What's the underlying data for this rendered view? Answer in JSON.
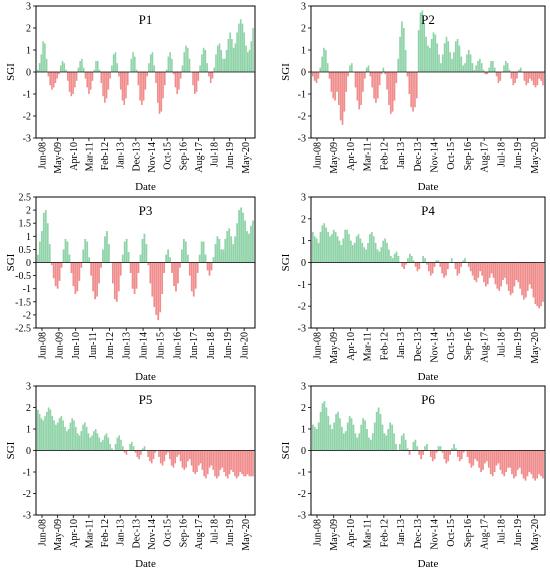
{
  "colors": {
    "positive": "#8fd3a8",
    "negative": "#f08c8c",
    "axis": "#000000",
    "frame": "#000000"
  },
  "chart_data": [
    {
      "type": "bar",
      "title": "P1",
      "xlabel": "Date",
      "ylabel": "SGI",
      "ylim": [
        -3,
        3
      ],
      "yticks": [
        -3,
        -2,
        -1,
        0,
        1,
        2,
        3
      ],
      "xticklabels": [
        "Jun-08",
        "May-09",
        "Apr-10",
        "Mar-11",
        "Feb-12",
        "Jan-13",
        "Dec-13",
        "Nov-14",
        "Oct-15",
        "Sep-16",
        "Aug-17",
        "Jul-18",
        "Jun-19",
        "May-20"
      ],
      "values": [
        0.1,
        0.4,
        0.8,
        1.4,
        1.3,
        0.6,
        -0.2,
        -0.6,
        -0.8,
        -0.7,
        -0.5,
        -0.3,
        -0.1,
        0.3,
        0.5,
        0.4,
        0.1,
        -0.4,
        -0.9,
        -1.1,
        -1.0,
        -0.7,
        -0.4,
        0.2,
        0.5,
        0.6,
        0.2,
        -0.3,
        -0.7,
        -1.0,
        -0.8,
        -0.4,
        0.1,
        0.5,
        0.5,
        0.1,
        -0.5,
        -1.1,
        -1.4,
        -1.2,
        -0.8,
        -0.3,
        0.3,
        0.8,
        0.9,
        0.4,
        -0.2,
        -0.8,
        -1.3,
        -1.5,
        -1.2,
        -0.6,
        0.0,
        0.6,
        0.9,
        0.7,
        0.1,
        -0.6,
        -1.3,
        -1.5,
        -1.3,
        -0.8,
        -0.2,
        0.4,
        0.8,
        0.9,
        0.3,
        -0.5,
        -1.4,
        -1.9,
        -1.8,
        -1.2,
        -0.6,
        0.1,
        0.7,
        0.9,
        0.6,
        -0.1,
        -0.7,
        -1.0,
        -0.8,
        -0.3,
        0.3,
        0.9,
        1.2,
        1.1,
        0.6,
        0.0,
        -0.6,
        -1.0,
        -0.9,
        -0.4,
        0.3,
        0.8,
        1.1,
        1.0,
        0.4,
        -0.2,
        -0.5,
        -0.3,
        0.2,
        0.8,
        1.2,
        1.3,
        1.0,
        0.6,
        0.6,
        1.0,
        1.5,
        1.8,
        1.5,
        1.1,
        1.3,
        1.8,
        2.2,
        2.4,
        2.2,
        1.8,
        1.2,
        0.9,
        1.0,
        1.4,
        2.0
      ]
    },
    {
      "type": "bar",
      "title": "P2",
      "xlabel": "Date",
      "ylabel": "SGI",
      "ylim": [
        -3,
        3
      ],
      "yticks": [
        -3,
        -2,
        -1,
        0,
        1,
        2,
        3
      ],
      "xticklabels": [
        "Jun-08",
        "May-09",
        "Apr-10",
        "Mar-11",
        "Feb-12",
        "Jan-13",
        "Dec-13",
        "Nov-14",
        "Oct-15",
        "Sep-16",
        "Aug-17",
        "Jul-18",
        "Jun-19",
        "May-20"
      ],
      "values": [
        -0.2,
        -0.4,
        -0.5,
        -0.3,
        0.2,
        0.7,
        1.1,
        1.0,
        0.4,
        -0.3,
        -0.9,
        -1.2,
        -1.3,
        -0.9,
        -1.5,
        -2.2,
        -2.4,
        -1.8,
        -0.9,
        -0.2,
        0.3,
        0.4,
        0.0,
        -0.7,
        -1.3,
        -1.7,
        -1.5,
        -0.9,
        -0.3,
        0.2,
        0.3,
        -0.2,
        -0.7,
        -1.2,
        -1.4,
        -1.2,
        -0.6,
        -0.1,
        0.2,
        -0.1,
        -0.8,
        -1.5,
        -1.9,
        -1.8,
        -1.3,
        -0.5,
        0.6,
        1.6,
        2.3,
        2.0,
        1.0,
        -0.2,
        -1.0,
        -1.6,
        -1.8,
        -1.6,
        -1.2,
        1.9,
        2.7,
        2.8,
        2.2,
        1.6,
        1.2,
        1.1,
        1.5,
        1.8,
        1.7,
        1.3,
        0.8,
        0.4,
        0.8,
        1.3,
        1.6,
        1.4,
        0.9,
        0.6,
        0.9,
        1.4,
        1.5,
        1.2,
        0.7,
        0.3,
        0.4,
        0.8,
        1.0,
        0.8,
        0.4,
        0.1,
        0.3,
        0.5,
        0.6,
        0.4,
        0.1,
        -0.1,
        -0.1,
        0.2,
        0.5,
        0.5,
        0.2,
        -0.2,
        -0.5,
        -0.4,
        0.0,
        0.3,
        0.5,
        0.4,
        0.1,
        -0.3,
        -0.6,
        -0.5,
        -0.3,
        0.1,
        0.2,
        0.0,
        -0.4,
        -0.6,
        -0.5,
        -0.3,
        -0.4,
        -0.6,
        -0.7,
        -0.6,
        -0.3,
        -0.4,
        -0.6
      ]
    },
    {
      "type": "bar",
      "title": "P3",
      "xlabel": "Date",
      "ylabel": "SGI",
      "ylim": [
        -2.5,
        2.5
      ],
      "yticks": [
        -2.5,
        -2,
        -1.5,
        -1,
        -0.5,
        0,
        0.5,
        1,
        1.5,
        2,
        2.5
      ],
      "xticklabels": [
        "Jun-08",
        "Jun-09",
        "Jun-10",
        "Jun-11",
        "Jun-12",
        "Jun-13",
        "Jun-14",
        "Jun-15",
        "Jun-16",
        "Jun-17",
        "Jun-18",
        "Jun-19",
        "Jun-20"
      ],
      "values": [
        0.3,
        0.8,
        1.2,
        1.9,
        2.0,
        1.5,
        0.7,
        -0.1,
        -0.6,
        -0.9,
        -1.0,
        -0.7,
        -0.2,
        0.5,
        0.9,
        0.8,
        0.3,
        -0.4,
        -0.9,
        -1.2,
        -1.1,
        -0.7,
        -0.2,
        0.5,
        0.9,
        0.8,
        0.2,
        -0.5,
        -1.1,
        -1.4,
        -1.3,
        -0.8,
        -0.2,
        0.5,
        1.0,
        1.2,
        0.7,
        0.0,
        -0.8,
        -1.4,
        -1.5,
        -1.1,
        -0.5,
        0.3,
        0.8,
        0.9,
        0.4,
        -0.4,
        -1.0,
        -1.2,
        -1.0,
        -0.4,
        0.3,
        0.9,
        1.1,
        0.7,
        -0.1,
        -0.8,
        -1.3,
        -1.7,
        -2.0,
        -2.2,
        -1.9,
        -1.2,
        -0.4,
        0.3,
        0.5,
        0.2,
        -0.4,
        -0.9,
        -1.1,
        -0.8,
        -0.2,
        0.5,
        0.9,
        0.8,
        0.3,
        -0.5,
        -1.1,
        -1.3,
        -1.0,
        -0.4,
        0.3,
        0.8,
        0.8,
        0.3,
        -0.3,
        -0.5,
        -0.3,
        0.2,
        0.7,
        1.0,
        0.9,
        0.5,
        0.5,
        0.9,
        1.2,
        1.3,
        1.0,
        0.7,
        1.0,
        1.5,
        2.0,
        2.1,
        1.9,
        1.6,
        1.2,
        1.1,
        1.4,
        1.6
      ]
    },
    {
      "type": "bar",
      "title": "P4",
      "xlabel": "Date",
      "ylabel": "SGI",
      "ylim": [
        -3,
        3
      ],
      "yticks": [
        -3,
        -2,
        -1,
        0,
        1,
        2,
        3
      ],
      "xticklabels": [
        "Jun-08",
        "May-09",
        "Apr-10",
        "Mar-11",
        "Feb-12",
        "Jan-13",
        "Dec-13",
        "Nov-14",
        "Oct-15",
        "Sep-16",
        "Aug-17",
        "Jul-18",
        "Jun-19",
        "May-20"
      ],
      "values": [
        1.4,
        1.2,
        1.1,
        0.9,
        1.4,
        1.7,
        1.8,
        1.6,
        1.4,
        1.2,
        1.3,
        1.5,
        1.4,
        1.2,
        1.0,
        0.8,
        1.1,
        1.5,
        1.5,
        1.3,
        1.0,
        0.8,
        0.9,
        1.2,
        1.3,
        1.1,
        0.9,
        0.7,
        0.6,
        0.9,
        1.3,
        1.4,
        1.2,
        0.9,
        0.6,
        0.5,
        0.7,
        1.0,
        1.1,
        0.9,
        0.6,
        0.3,
        0.2,
        0.4,
        0.5,
        0.3,
        0.0,
        -0.2,
        -0.3,
        -0.1,
        0.2,
        0.4,
        0.3,
        0.1,
        -0.2,
        -0.4,
        -0.3,
        0.0,
        0.3,
        0.2,
        -0.1,
        -0.4,
        -0.6,
        -0.5,
        -0.2,
        0.1,
        0.1,
        -0.2,
        -0.5,
        -0.7,
        -0.6,
        -0.3,
        0.0,
        0.2,
        0.0,
        -0.3,
        -0.6,
        -0.5,
        -0.2,
        0.1,
        0.2,
        0.0,
        -0.2,
        -0.4,
        -0.6,
        -0.8,
        -0.9,
        -0.7,
        -0.4,
        -0.6,
        -0.9,
        -1.1,
        -1.0,
        -0.7,
        -0.5,
        -0.7,
        -1.0,
        -1.2,
        -1.3,
        -1.1,
        -0.8,
        -0.7,
        -1.0,
        -1.3,
        -1.5,
        -1.4,
        -1.1,
        -0.8,
        -0.9,
        -1.2,
        -1.5,
        -1.7,
        -1.6,
        -1.3,
        -1.0,
        -1.2,
        -1.6,
        -1.9,
        -2.0,
        -2.1,
        -2.0,
        -1.8
      ]
    },
    {
      "type": "bar",
      "title": "P5",
      "xlabel": "Date",
      "ylabel": "SGI",
      "ylim": [
        -3,
        3
      ],
      "yticks": [
        -3,
        -2,
        -1,
        0,
        1,
        2,
        3
      ],
      "xticklabels": [
        "Jun-08",
        "May-09",
        "Apr-10",
        "Mar-11",
        "Feb-12",
        "Jan-13",
        "Dec-13",
        "Nov-14",
        "Oct-15",
        "Sep-16",
        "Aug-17",
        "Jul-18",
        "Jun-19",
        "May-20"
      ],
      "values": [
        1.9,
        1.7,
        1.5,
        1.4,
        1.6,
        1.8,
        2.0,
        1.9,
        1.6,
        1.4,
        1.2,
        1.3,
        1.5,
        1.6,
        1.4,
        1.1,
        0.9,
        1.0,
        1.3,
        1.5,
        1.4,
        1.1,
        0.8,
        0.7,
        0.9,
        1.2,
        1.3,
        1.1,
        0.8,
        0.6,
        0.7,
        0.9,
        1.0,
        0.8,
        0.6,
        0.4,
        0.5,
        0.7,
        0.8,
        0.6,
        0.3,
        0.1,
        0.0,
        0.3,
        0.6,
        0.7,
        0.5,
        0.2,
        -0.1,
        -0.2,
        0.0,
        0.3,
        0.4,
        0.2,
        -0.1,
        -0.3,
        -0.4,
        -0.2,
        0.1,
        0.2,
        0.0,
        -0.3,
        -0.5,
        -0.6,
        -0.4,
        -0.1,
        0.0,
        -0.3,
        -0.6,
        -0.7,
        -0.5,
        -0.2,
        -0.1,
        -0.4,
        -0.7,
        -0.8,
        -0.6,
        -0.3,
        -0.2,
        -0.5,
        -0.8,
        -0.9,
        -0.8,
        -0.5,
        -0.4,
        -0.7,
        -1.0,
        -1.1,
        -1.0,
        -0.7,
        -0.6,
        -0.9,
        -1.2,
        -1.3,
        -1.1,
        -0.8,
        -0.7,
        -0.9,
        -1.2,
        -1.3,
        -1.2,
        -0.9,
        -0.8,
        -1.0,
        -1.2,
        -1.3,
        -1.1,
        -0.9,
        -1.0,
        -1.2,
        -1.3,
        -1.2,
        -1.0,
        -1.1,
        -1.2,
        -1.2,
        -1.1,
        -1.2,
        -1.2,
        -1.2
      ]
    },
    {
      "type": "bar",
      "title": "P6",
      "xlabel": "Date",
      "ylabel": "SGI",
      "ylim": [
        -3,
        3
      ],
      "yticks": [
        -3,
        -2,
        -1,
        0,
        1,
        2,
        3
      ],
      "xticklabels": [
        "Jun-08",
        "May-09",
        "Apr-10",
        "Mar-11",
        "Feb-12",
        "Jan-13",
        "Dec-13",
        "Nov-14",
        "Oct-15",
        "Sep-16",
        "Aug-17",
        "Jul-18",
        "Jun-19",
        "May-20"
      ],
      "values": [
        1.2,
        1.1,
        1.0,
        1.3,
        1.8,
        2.2,
        2.3,
        2.0,
        1.6,
        1.2,
        1.0,
        1.3,
        1.7,
        1.8,
        1.5,
        1.1,
        0.8,
        0.9,
        1.3,
        1.6,
        1.5,
        1.2,
        0.8,
        0.6,
        0.8,
        1.2,
        1.5,
        1.4,
        1.0,
        0.6,
        0.5,
        0.8,
        1.3,
        1.8,
        2.0,
        1.7,
        1.2,
        0.8,
        0.7,
        1.0,
        1.3,
        1.2,
        0.8,
        0.3,
        0.0,
        0.3,
        0.7,
        0.8,
        0.5,
        0.1,
        -0.2,
        0.0,
        0.4,
        0.5,
        0.2,
        -0.2,
        -0.4,
        -0.2,
        0.2,
        0.3,
        0.0,
        -0.3,
        -0.5,
        -0.4,
        -0.1,
        0.2,
        0.2,
        -0.1,
        -0.4,
        -0.6,
        -0.5,
        -0.2,
        0.1,
        0.3,
        0.1,
        -0.3,
        -0.5,
        -0.4,
        -0.1,
        0.0,
        -0.3,
        -0.6,
        -0.8,
        -0.7,
        -0.4,
        -0.5,
        -0.8,
        -1.0,
        -0.9,
        -0.6,
        -0.5,
        -0.8,
        -1.1,
        -1.2,
        -1.0,
        -0.7,
        -0.6,
        -0.9,
        -1.1,
        -1.2,
        -1.0,
        -0.8,
        -0.8,
        -1.1,
        -1.3,
        -1.2,
        -0.9,
        -0.8,
        -1.1,
        -1.3,
        -1.4,
        -1.2,
        -1.0,
        -1.1,
        -1.3,
        -1.4,
        -1.3,
        -1.1,
        -1.2,
        -1.3
      ]
    }
  ]
}
